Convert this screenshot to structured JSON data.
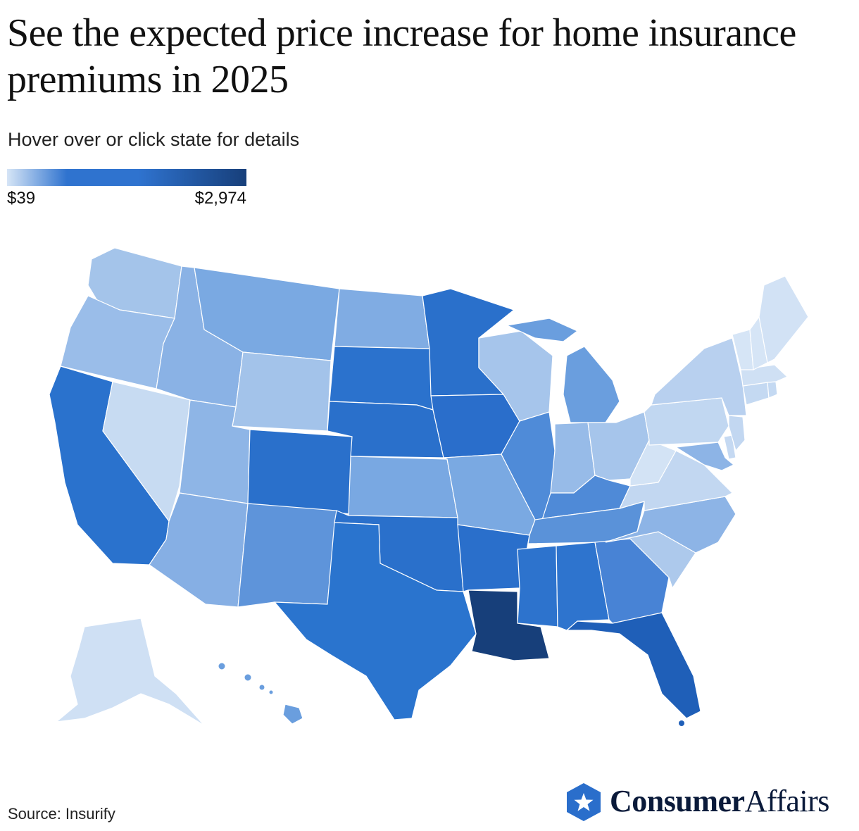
{
  "title": "See the expected price increase for home insurance premiums in 2025",
  "subtitle": "Hover over or click state for details",
  "legend": {
    "min_label": "$39",
    "max_label": "$2,974",
    "min_value": 39,
    "max_value": 2974,
    "color_low": "#d6e5f6",
    "color_mid": "#2f73cf",
    "color_high": "#173f7a"
  },
  "source": "Source: Insurify",
  "logo": {
    "brand_bold": "Consumer",
    "brand_regular": "Affairs",
    "icon": "star-icon"
  },
  "states": [
    {
      "code": "WA",
      "name": "Washington",
      "color": "#a4c4ea"
    },
    {
      "code": "OR",
      "name": "Oregon",
      "color": "#9abde9"
    },
    {
      "code": "CA",
      "name": "California",
      "color": "#2a72cd"
    },
    {
      "code": "NV",
      "name": "Nevada",
      "color": "#c7dbf2"
    },
    {
      "code": "ID",
      "name": "Idaho",
      "color": "#8ab2e5"
    },
    {
      "code": "MT",
      "name": "Montana",
      "color": "#7aa9e2"
    },
    {
      "code": "WY",
      "name": "Wyoming",
      "color": "#a3c3ea"
    },
    {
      "code": "UT",
      "name": "Utah",
      "color": "#8eb5e6"
    },
    {
      "code": "AZ",
      "name": "Arizona",
      "color": "#86afe4"
    },
    {
      "code": "CO",
      "name": "Colorado",
      "color": "#2a70cb"
    },
    {
      "code": "NM",
      "name": "New Mexico",
      "color": "#5e94da"
    },
    {
      "code": "ND",
      "name": "North Dakota",
      "color": "#80ace3"
    },
    {
      "code": "SD",
      "name": "South Dakota",
      "color": "#2b72cd"
    },
    {
      "code": "NE",
      "name": "Nebraska",
      "color": "#2a70cb"
    },
    {
      "code": "KS",
      "name": "Kansas",
      "color": "#79a8e2"
    },
    {
      "code": "OK",
      "name": "Oklahoma",
      "color": "#2a70cb"
    },
    {
      "code": "TX",
      "name": "Texas",
      "color": "#2a74ce"
    },
    {
      "code": "MN",
      "name": "Minnesota",
      "color": "#2a70cb"
    },
    {
      "code": "IA",
      "name": "Iowa",
      "color": "#2a6ecb"
    },
    {
      "code": "MO",
      "name": "Missouri",
      "color": "#7aa9e2"
    },
    {
      "code": "AR",
      "name": "Arkansas",
      "color": "#2a6fcb"
    },
    {
      "code": "LA",
      "name": "Louisiana",
      "color": "#173f7a"
    },
    {
      "code": "WI",
      "name": "Wisconsin",
      "color": "#a6c5eb"
    },
    {
      "code": "IL",
      "name": "Illinois",
      "color": "#4f8bd8"
    },
    {
      "code": "MI",
      "name": "Michigan",
      "color": "#6a9ede"
    },
    {
      "code": "IN",
      "name": "Indiana",
      "color": "#97bbe8"
    },
    {
      "code": "OH",
      "name": "Ohio",
      "color": "#a6c5eb"
    },
    {
      "code": "KY",
      "name": "Kentucky",
      "color": "#4f8ad7"
    },
    {
      "code": "TN",
      "name": "Tennessee",
      "color": "#5a92d9"
    },
    {
      "code": "MS",
      "name": "Mississippi",
      "color": "#2d73cd"
    },
    {
      "code": "AL",
      "name": "Alabama",
      "color": "#2e74ce"
    },
    {
      "code": "GA",
      "name": "Georgia",
      "color": "#4883d5"
    },
    {
      "code": "FL",
      "name": "Florida",
      "color": "#1f5fb8"
    },
    {
      "code": "SC",
      "name": "South Carolina",
      "color": "#adc9ec"
    },
    {
      "code": "NC",
      "name": "North Carolina",
      "color": "#8db4e6"
    },
    {
      "code": "VA",
      "name": "Virginia",
      "color": "#c2d7f1"
    },
    {
      "code": "WV",
      "name": "West Virginia",
      "color": "#d3e3f5"
    },
    {
      "code": "PA",
      "name": "Pennsylvania",
      "color": "#c1d7f1"
    },
    {
      "code": "NY",
      "name": "New York",
      "color": "#b8d0ef"
    },
    {
      "code": "MD",
      "name": "Maryland",
      "color": "#8db4e6"
    },
    {
      "code": "DE",
      "name": "Delaware",
      "color": "#c5d9f2"
    },
    {
      "code": "NJ",
      "name": "New Jersey",
      "color": "#c2d7f1"
    },
    {
      "code": "CT",
      "name": "Connecticut",
      "color": "#c4d9f2"
    },
    {
      "code": "RI",
      "name": "Rhode Island",
      "color": "#c4d9f2"
    },
    {
      "code": "MA",
      "name": "Massachusetts",
      "color": "#cfe0f4"
    },
    {
      "code": "VT",
      "name": "Vermont",
      "color": "#d6e5f6"
    },
    {
      "code": "NH",
      "name": "New Hampshire",
      "color": "#d6e5f6"
    },
    {
      "code": "ME",
      "name": "Maine",
      "color": "#d2e2f5"
    },
    {
      "code": "AK",
      "name": "Alaska",
      "color": "#cfe0f4"
    },
    {
      "code": "HI",
      "name": "Hawaii",
      "color": "#6a9ede"
    }
  ]
}
